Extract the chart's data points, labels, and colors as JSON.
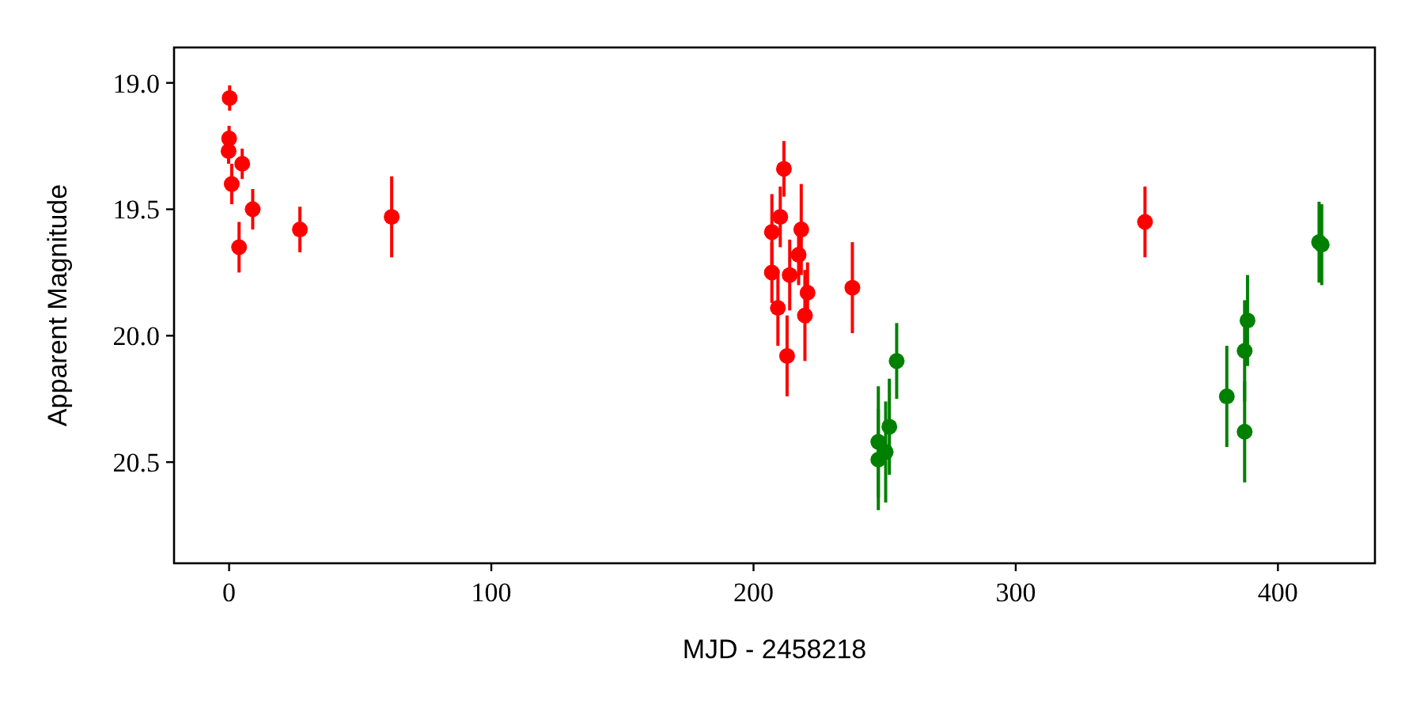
{
  "chart_data": {
    "type": "scatter",
    "xlabel": "MJD - 2458218",
    "ylabel": "Apparent Magnitude",
    "marker": "circle",
    "xlim": [
      -21,
      437
    ],
    "ylim": [
      20.9,
      18.86
    ],
    "xticks": [
      0,
      100,
      200,
      300,
      400
    ],
    "yticks": [
      {
        "value": 19,
        "label": "19.0"
      },
      19.5,
      {
        "value": 20,
        "label": "20.0"
      },
      20.5
    ],
    "series": [
      {
        "color": "#ff0000",
        "x": [
          0.2,
          0.0,
          -0.2,
          5.0,
          1.0,
          9.0,
          3.8,
          27.0,
          62.0,
          211.6,
          207.0,
          218.2,
          210.2,
          207.0,
          213.8,
          217.2,
          220.6,
          209.3,
          219.6,
          212.8,
          237.7,
          349.3
        ],
        "values": [
          19.06,
          19.22,
          19.27,
          19.32,
          19.4,
          19.5,
          19.65,
          19.58,
          19.53,
          19.34,
          19.59,
          19.58,
          19.53,
          19.75,
          19.76,
          19.68,
          19.83,
          19.89,
          19.92,
          20.08,
          19.81,
          19.55
        ],
        "errors": [
          0.05,
          0.05,
          0.05,
          0.06,
          0.08,
          0.08,
          0.1,
          0.09,
          0.16,
          0.11,
          0.15,
          0.18,
          0.12,
          0.12,
          0.14,
          0.12,
          0.12,
          0.15,
          0.18,
          0.16,
          0.18,
          0.14
        ]
      },
      {
        "color": "#008000",
        "x": [
          247.6,
          247.6,
          250.4,
          251.8,
          254.6,
          380.5,
          388.4,
          387.3,
          387.3,
          415.7,
          416.7
        ],
        "values": [
          20.42,
          20.49,
          20.46,
          20.36,
          20.1,
          20.24,
          19.94,
          20.06,
          20.38,
          19.63,
          19.64
        ],
        "errors": [
          0.22,
          0.2,
          0.2,
          0.19,
          0.15,
          0.2,
          0.18,
          0.2,
          0.2,
          0.16,
          0.16
        ]
      }
    ]
  }
}
